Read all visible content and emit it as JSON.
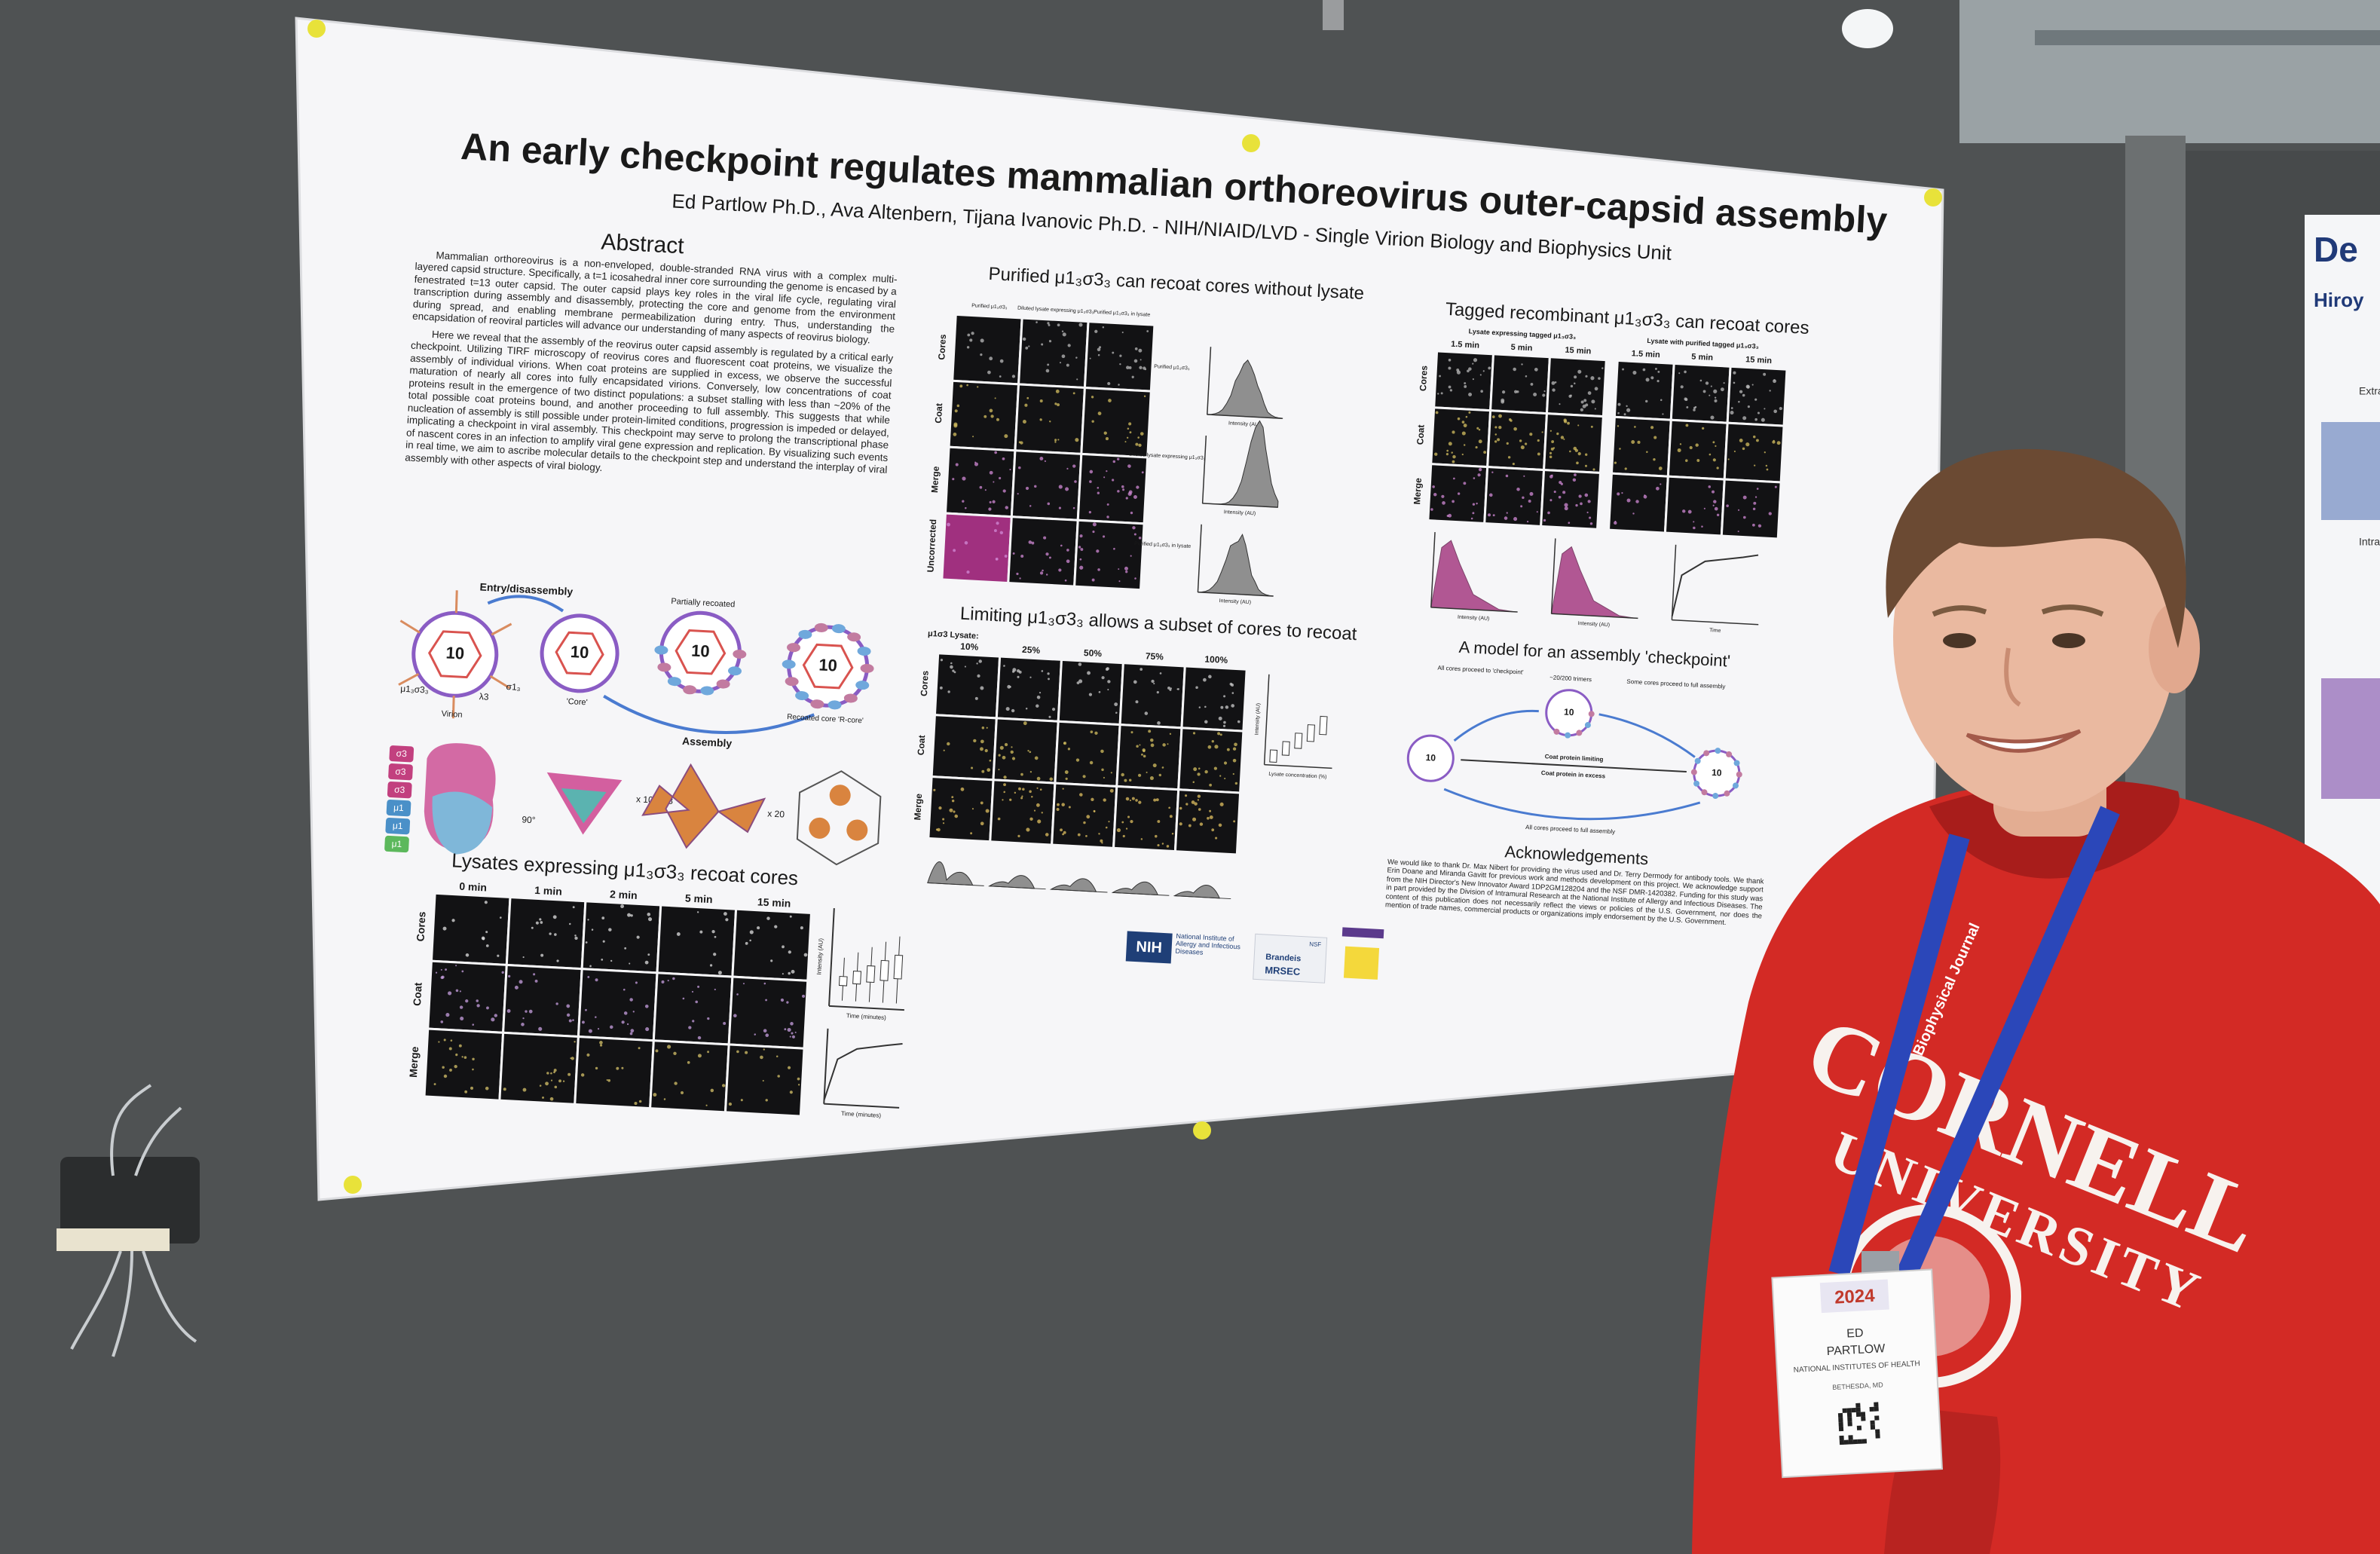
{
  "poster": {
    "title": "An early checkpoint regulates mammalian orthoreovirus outer-capsid assembly",
    "authors": "Ed Partlow Ph.D., Ava Altenbern, Tijana Ivanovic Ph.D. - NIH/NIAID/LVD - Single Virion Biology and Biophysics Unit",
    "abstract": {
      "heading": "Abstract",
      "paragraphs": [
        "Mammalian orthoreovirus is a non-enveloped, double-stranded RNA virus with a complex multi-layered capsid structure. Specifically, a t=1 icosahedral inner core surrounding the genome is encased by a fenestrated t=13 outer capsid. The outer capsid plays key roles in the viral life cycle, regulating viral transcription during assembly and disassembly, protecting the core and genome from the environment during spread, and enabling membrane permeabilization during entry. Thus, understanding the encapsidation of reoviral particles will advance our understanding of many aspects of reovirus biology.",
        "Here we reveal that the assembly of the reovirus outer capsid assembly is regulated by a critical early checkpoint. Utilizing TIRF microscopy of reovirus cores and fluorescent coat proteins, we visualize the assembly of individual virions. When coat proteins are supplied in excess, we observe the successful maturation of nearly all cores into fully encapsidated virions. Conversely, low concentrations of coat proteins result in the emergence of two distinct populations: a subset stalling with less than ~20% of the total possible coat proteins bound, and another proceeding to full assembly. This suggests that while nucleation of assembly is still possible under protein-limited conditions, progression is impeded or delayed, implicating a checkpoint in viral assembly. This checkpoint may serve to prolong the transcriptional phase of nascent cores in an infection to amplify viral gene expression and replication. By visualizing such events in real time, we aim to ascribe molecular details to the checkpoint step and understand the interplay of viral assembly with other aspects of viral biology."
      ]
    },
    "diagram": {
      "entry": "Entry/disassembly",
      "partial": "Partially recoated",
      "assembly": "Assembly",
      "virion": "Virion",
      "core": "'Core'",
      "rcore": "Recoated core 'R-core'",
      "number": "10",
      "coat": "μ1₃σ3₃",
      "lambda": "λ3",
      "sigma1": "σ1₃",
      "rotation": "90°",
      "times10": "x 10 + λ3",
      "times20": "x 20",
      "chips": [
        "σ3",
        "σ3",
        "σ3",
        "μ1",
        "μ1",
        "μ1"
      ]
    },
    "purified": {
      "heading": "Purified μ1₃σ3₃ can recoat cores without lysate",
      "columns": [
        "Purified μ1₃σ3₃",
        "Diluted lysate expressing μ1₃σ3₃",
        "Purified μ1₃σ3₃ in lysate"
      ],
      "rows": [
        "Cores",
        "Coat",
        "Merge",
        "Uncorrected"
      ],
      "x_label": "Intensity (AU)"
    },
    "tagged": {
      "heading": "Tagged recombinant μ1₃σ3₃ can recoat cores",
      "groups": [
        "Lysate expressing tagged μ1₃σ3₃",
        "Lysate with purified tagged μ1₃σ3₃"
      ],
      "times": [
        "1.5 min",
        "5 min",
        "15 min"
      ],
      "rows": [
        "Cores",
        "Coat",
        "Merge"
      ],
      "x_label": "Intensity (AU)",
      "time_label": "Time"
    },
    "limiting": {
      "heading": "Limiting μ1₃σ3₃ allows a subset of cores to recoat",
      "lysate_label": "μ1σ3 Lysate:",
      "percents": [
        "10%",
        "25%",
        "50%",
        "75%",
        "100%"
      ],
      "rows": [
        "Cores",
        "Coat",
        "Merge"
      ],
      "x_label": "Lysate concentration (%)",
      "y_label": "Intensity (AU)"
    },
    "lysates": {
      "heading": "Lysates expressing μ1₃σ3₃ recoat cores",
      "times": [
        "0 min",
        "1 min",
        "2 min",
        "5 min",
        "15 min"
      ],
      "rows": [
        "Cores",
        "Coat",
        "Merge"
      ],
      "x_label": "Time (minutes)",
      "y_label": "Intensity (AU)"
    },
    "model": {
      "heading": "A model for an assembly 'checkpoint'",
      "to_checkpoint": "All cores proceed to 'checkpoint'",
      "trimers": "~20/200 trimers",
      "some_full": "Some cores proceed to full assembly",
      "limiting": "Coat protein limiting",
      "excess": "Coat protein in excess",
      "all_full": "All cores proceed to full assembly"
    },
    "acknowledgements": {
      "heading": "Acknowledgements",
      "text": "We would like to thank Dr. Max Nibert for providing the virus used and Dr. Terry Dermody for antibody tools. We thank Erin Doane and Miranda Gavitt for previous work and methods development on this project. We acknowledge support from the NIH Director's New Innovator Award 1DP2GM128204 and the NSF DMR-1420382. Funding for this study was in part provided by the Division of Intramural Research at the National Institute of Allergy and Infectious Diseases. The content of this publication does not necessarily reflect the views or policies of the U.S. Government, nor does the mention of trade names, commercial products or organizations imply endorsement by the U.S. Government."
    },
    "logos": {
      "nih": "NIH",
      "niaid": "National Institute of Allergy and Infectious Diseases",
      "brandeis": "Brandeis",
      "mrsec": "MRSEC",
      "nsf": "NSF"
    }
  },
  "attendee": {
    "hoodie": [
      "CORNELL",
      "UNIVERSITY"
    ],
    "lanyard": "Biophysical Journal",
    "badge": {
      "year": "2024",
      "first": "ED",
      "last": "PARTLOW",
      "org": "NATIONAL INSTITUTES OF HEALTH",
      "city": "BETHESDA, MD"
    }
  },
  "neighbor_poster": {
    "title": "De",
    "author": "Hiroy",
    "labels": [
      "Extracellular",
      "Intracellular"
    ]
  }
}
